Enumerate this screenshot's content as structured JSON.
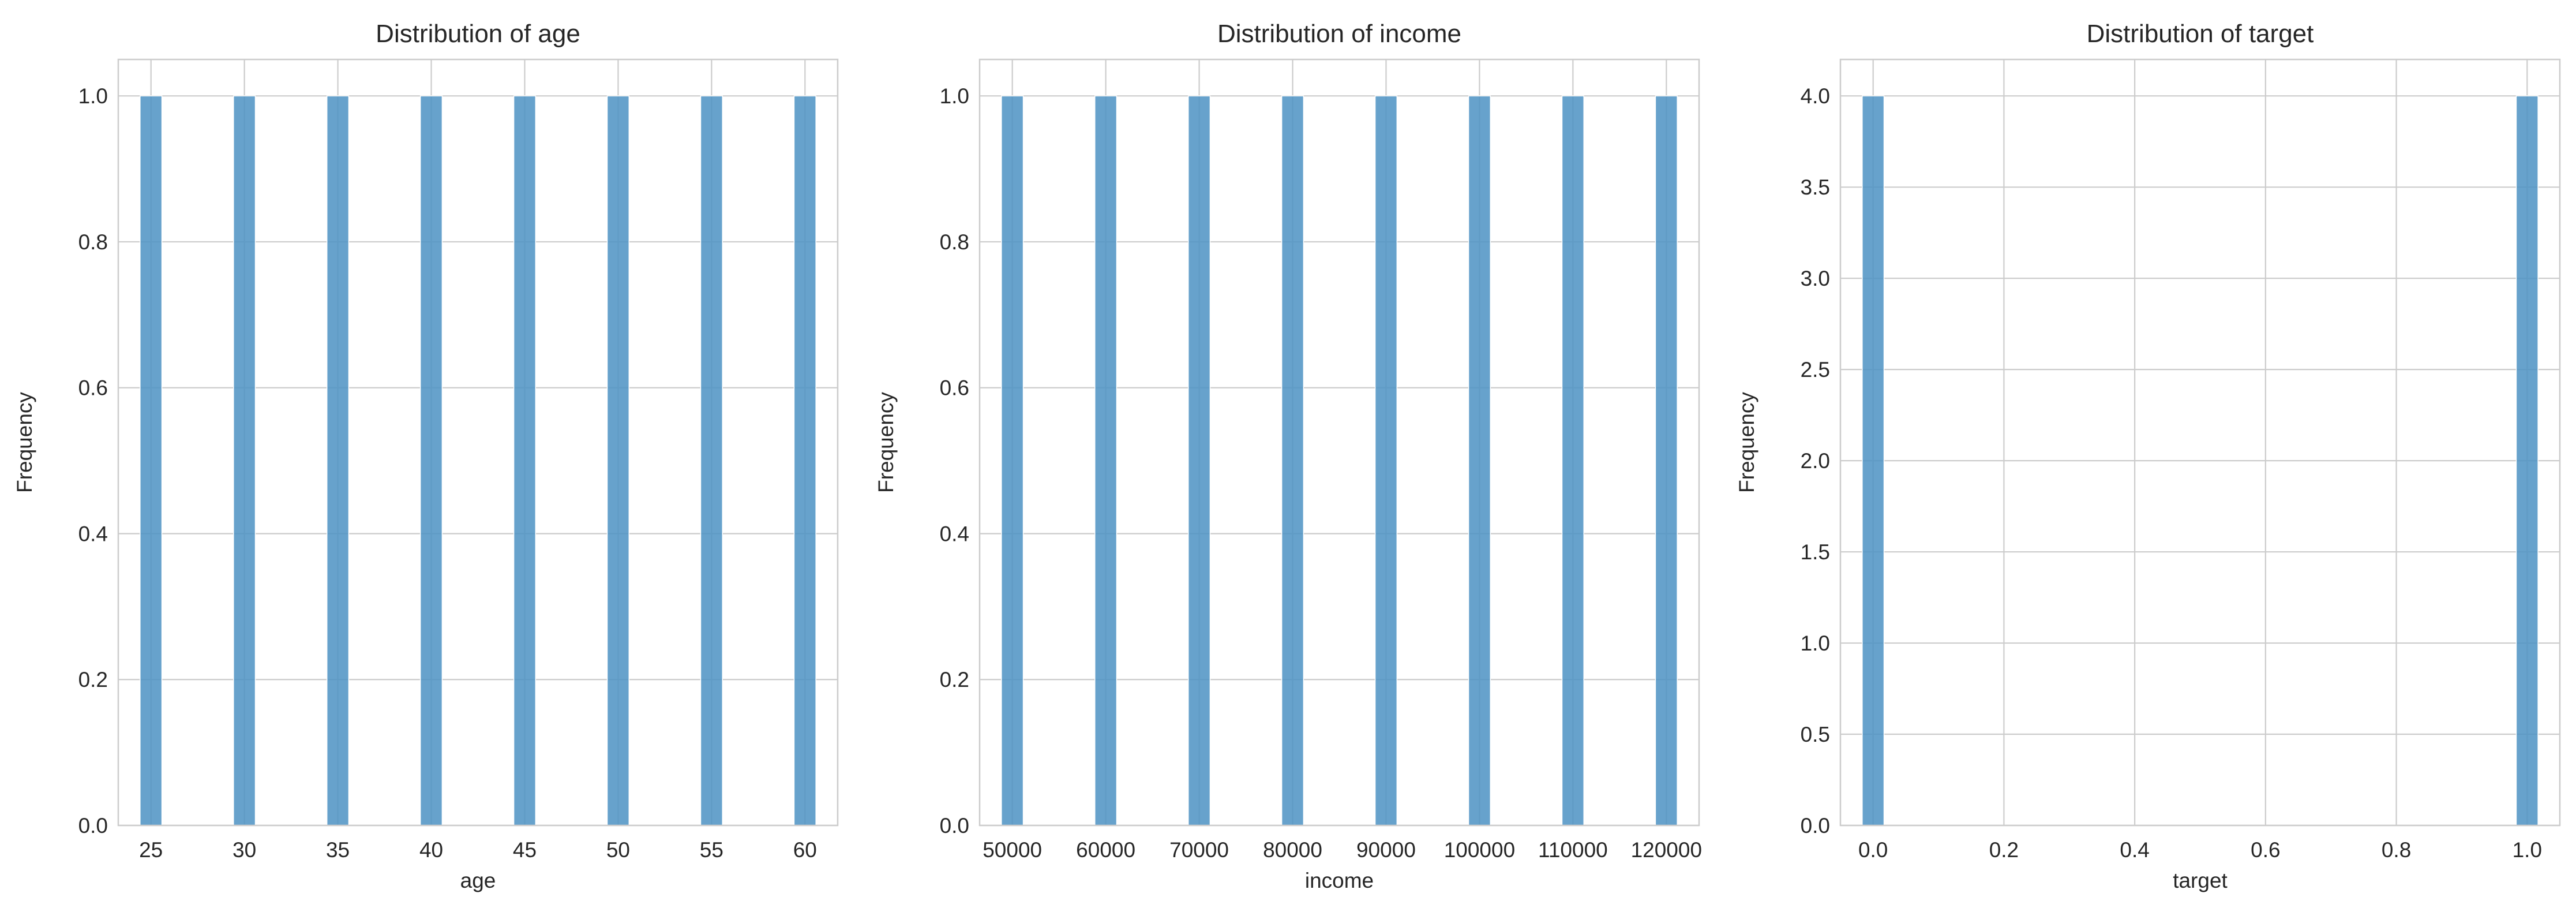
{
  "chart_data": [
    {
      "type": "bar",
      "title": "Distribution of age",
      "xlabel": "age",
      "ylabel": "Frequency",
      "x": [
        25,
        30,
        35,
        40,
        45,
        50,
        55,
        60
      ],
      "values": [
        1,
        1,
        1,
        1,
        1,
        1,
        1,
        1
      ],
      "bin_width": 1.1667,
      "xlim": [
        23.25,
        61.75
      ],
      "ylim": [
        0,
        1.05
      ],
      "xticks": [
        25,
        30,
        35,
        40,
        45,
        50,
        55,
        60
      ],
      "xtick_labels": [
        "25",
        "30",
        "35",
        "40",
        "45",
        "50",
        "55",
        "60"
      ],
      "yticks": [
        0,
        0.2,
        0.4,
        0.6,
        0.8,
        1.0
      ],
      "ytick_labels": [
        "0.0",
        "0.2",
        "0.4",
        "0.6",
        "0.8",
        "1.0"
      ],
      "grid": true,
      "color": "#4c92c3"
    },
    {
      "type": "bar",
      "title": "Distribution of income",
      "xlabel": "income",
      "ylabel": "Frequency",
      "x": [
        50000,
        60000,
        70000,
        80000,
        90000,
        100000,
        110000,
        120000
      ],
      "values": [
        1,
        1,
        1,
        1,
        1,
        1,
        1,
        1
      ],
      "bin_width": 2333,
      "xlim": [
        46500,
        123500
      ],
      "ylim": [
        0,
        1.05
      ],
      "xticks": [
        50000,
        60000,
        70000,
        80000,
        90000,
        100000,
        110000,
        120000
      ],
      "xtick_labels": [
        "50000",
        "60000",
        "70000",
        "80000",
        "90000",
        "100000",
        "110000",
        "120000"
      ],
      "yticks": [
        0,
        0.2,
        0.4,
        0.6,
        0.8,
        1.0
      ],
      "ytick_labels": [
        "0.0",
        "0.2",
        "0.4",
        "0.6",
        "0.8",
        "1.0"
      ],
      "grid": true,
      "color": "#4c92c3"
    },
    {
      "type": "bar",
      "title": "Distribution of target",
      "xlabel": "target",
      "ylabel": "Frequency",
      "x": [
        0,
        1
      ],
      "values": [
        4,
        4
      ],
      "bin_width": 0.0333,
      "xlim": [
        -0.05,
        1.05
      ],
      "ylim": [
        0,
        4.2
      ],
      "xticks": [
        0,
        0.2,
        0.4,
        0.6,
        0.8,
        1.0
      ],
      "xtick_labels": [
        "0.0",
        "0.2",
        "0.4",
        "0.6",
        "0.8",
        "1.0"
      ],
      "yticks": [
        0,
        0.5,
        1.0,
        1.5,
        2.0,
        2.5,
        3.0,
        3.5,
        4.0
      ],
      "ytick_labels": [
        "0.0",
        "0.5",
        "1.0",
        "1.5",
        "2.0",
        "2.5",
        "3.0",
        "3.5",
        "4.0"
      ],
      "grid": true,
      "color": "#4c92c3"
    }
  ]
}
